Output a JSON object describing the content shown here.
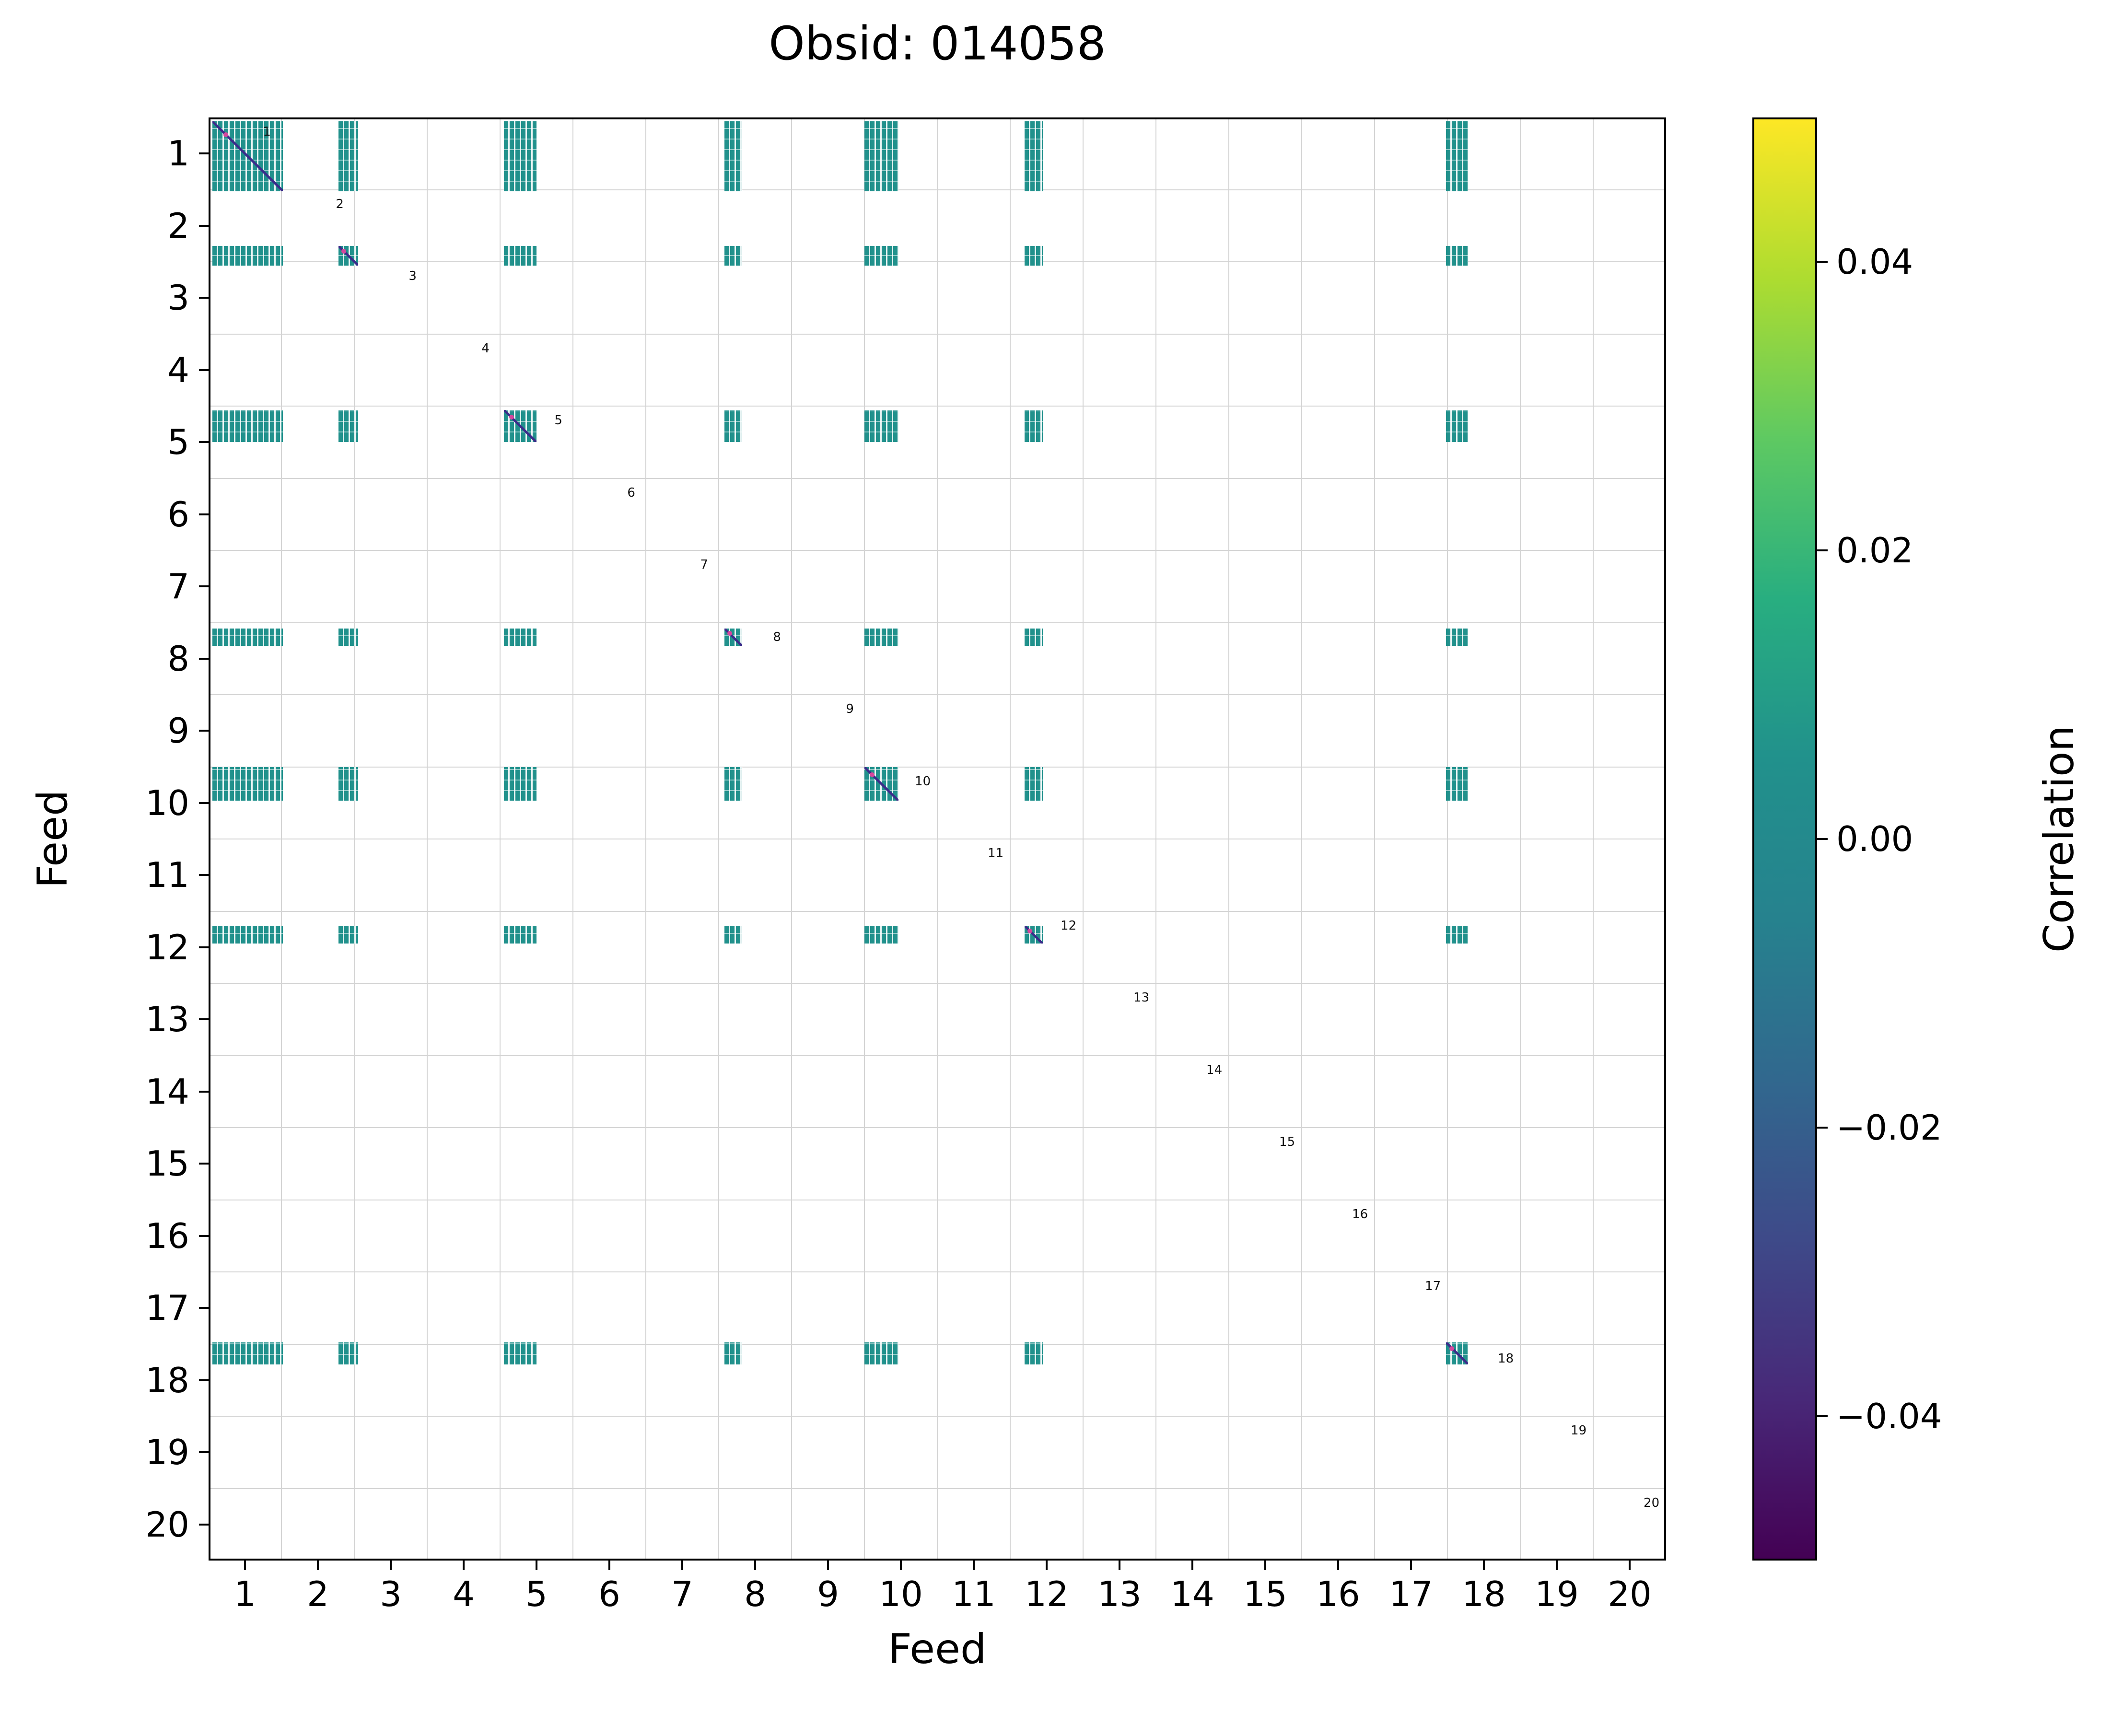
{
  "title": "Obsid: 014058",
  "chart_data": {
    "type": "heatmap",
    "title": "Obsid: 014058",
    "xlabel": "Feed",
    "ylabel": "Feed",
    "axis_range": [
      0.5,
      20.5
    ],
    "x_ticks": [
      1,
      2,
      3,
      4,
      5,
      6,
      7,
      8,
      9,
      10,
      11,
      12,
      13,
      14,
      15,
      16,
      17,
      18,
      19,
      20
    ],
    "y_ticks": [
      1,
      2,
      3,
      4,
      5,
      6,
      7,
      8,
      9,
      10,
      11,
      12,
      13,
      14,
      15,
      16,
      17,
      18,
      19,
      20
    ],
    "grid": true,
    "cell_color_zero": "#21918c",
    "diag_line_color": "#3b2c8a",
    "diag_dot_color": "#d5479d",
    "active_bands": [
      {
        "feed": 1,
        "start": 0.55,
        "end": 1.52
      },
      {
        "feed": 2,
        "start": 2.28,
        "end": 2.55
      },
      {
        "feed": 5,
        "start": 4.55,
        "end": 5.0
      },
      {
        "feed": 8,
        "start": 7.58,
        "end": 7.82
      },
      {
        "feed": 10,
        "start": 9.5,
        "end": 9.97
      },
      {
        "feed": 12,
        "start": 11.7,
        "end": 11.95
      },
      {
        "feed": 18,
        "start": 17.48,
        "end": 17.78
      }
    ],
    "diagonal_labels": [
      "1",
      "2",
      "3",
      "4",
      "5",
      "6",
      "7",
      "8",
      "9",
      "10",
      "11",
      "12",
      "13",
      "14",
      "15",
      "16",
      "17",
      "18",
      "19",
      "20"
    ],
    "diagonal_label_offset": [
      0.3,
      -0.3
    ],
    "colorbar": {
      "label": "Correlation",
      "colormap": "viridis",
      "vmin": -0.05,
      "vmax": 0.05,
      "ticks": [
        0.04,
        0.02,
        0.0,
        -0.02,
        -0.04
      ],
      "tick_labels": [
        "0.04",
        "0.02",
        "0.00",
        "−0.02",
        "−0.04"
      ],
      "gradient_stops": [
        "#440154",
        "#482878",
        "#3e4a89",
        "#31688e",
        "#26828e",
        "#21918c",
        "#28ae80",
        "#5ec962",
        "#addc30",
        "#fde725"
      ]
    }
  }
}
